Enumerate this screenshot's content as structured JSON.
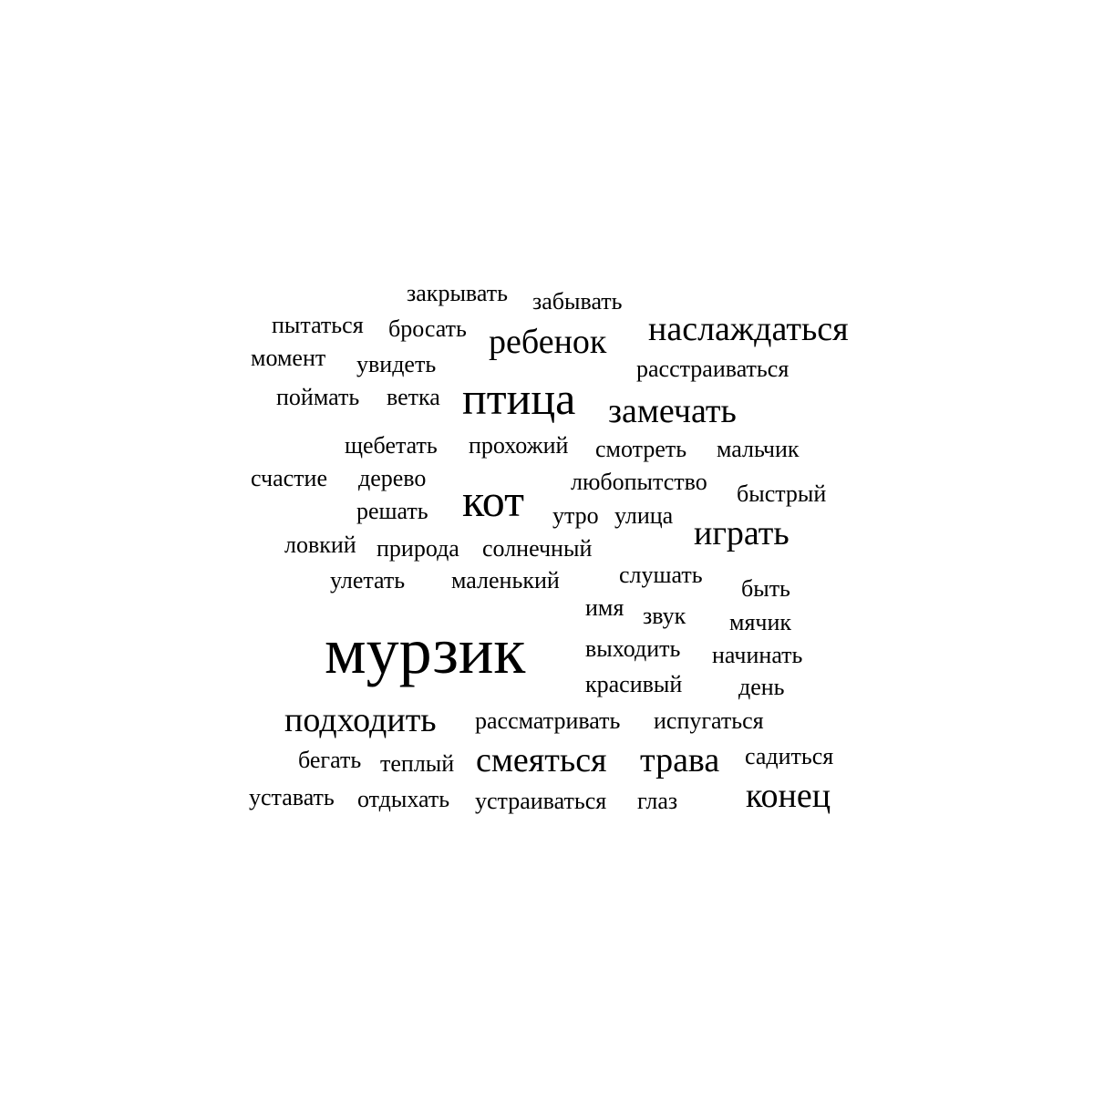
{
  "words": {
    "murzik": "мурзик",
    "ptitsa": "птица",
    "kot": "кот",
    "rebenok": "ребенок",
    "naslazhdatsya": "наслаждаться",
    "zamechat": "замечать",
    "igrat": "играть",
    "podkhodit": "подходить",
    "smeyatsya": "смеяться",
    "trava": "трава",
    "konets": "конец",
    "zakryvat": "закрывать",
    "zabyvat": "забывать",
    "pytatsya": "пытаться",
    "brosat": "бросать",
    "moment": "момент",
    "uvidet": "увидеть",
    "rasstraivatsya": "расстраиваться",
    "poimat": "поймать",
    "vetka": "ветка",
    "shchebetat": "щебетать",
    "prokhozhiy": "прохожий",
    "smotret": "смотреть",
    "malchik": "мальчик",
    "schastie": "счастие",
    "derevo": "дерево",
    "lyubopytstvo": "любопытство",
    "bystryy": "быстрый",
    "reshat": "решать",
    "utro": "утро",
    "ulitsa": "улица",
    "lovkiy": "ловкий",
    "priroda": "природа",
    "solnechnyy": "солнечный",
    "uletat": "улетать",
    "malenkiy": "маленький",
    "slushat": "слушать",
    "byt": "быть",
    "imya": "имя",
    "zvuk": "звук",
    "myachik": "мячик",
    "vykhodit": "выходить",
    "nachinat": "начинать",
    "krasivyy": "красивый",
    "den": "день",
    "rassmatrivat": "рассматривать",
    "ispugatsya": "испугаться",
    "begat": "бегать",
    "teplyy": "теплый",
    "saditsya": "садиться",
    "ustavat": "уставать",
    "otdykhat": "отдыхать",
    "ustraivatsya": "устраиваться",
    "glaz": "глаз"
  },
  "colors": {
    "text": "#000000",
    "background": "#ffffff"
  }
}
